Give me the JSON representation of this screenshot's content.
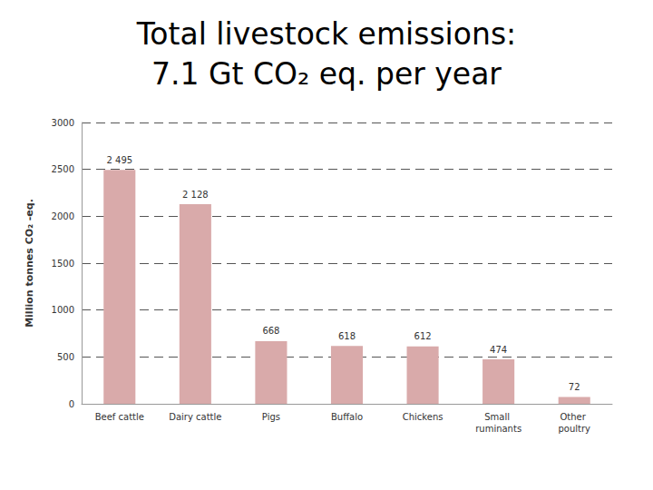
{
  "chart_data": {
    "type": "bar",
    "title": "Total livestock emissions:\n7.1 Gt CO₂ eq. per year",
    "y_label": "Million tonnes CO₂ -eq.",
    "categories": [
      "Beef cattle",
      "Dairy cattle",
      "Pigs",
      "Buffalo",
      "Chickens",
      "Small ruminants",
      "Other poultry"
    ],
    "values": [
      2495,
      2128,
      668,
      618,
      612,
      474,
      72
    ],
    "value_labels": [
      "2 495",
      "2 128",
      "668",
      "618",
      "612",
      "474",
      "72"
    ],
    "color": "#d9aaaa",
    "ylim": [
      0,
      3000
    ],
    "yticks": [
      0,
      500,
      1000,
      1500,
      2000,
      2500,
      3000
    ],
    "grid": true,
    "data_labels": true
  }
}
